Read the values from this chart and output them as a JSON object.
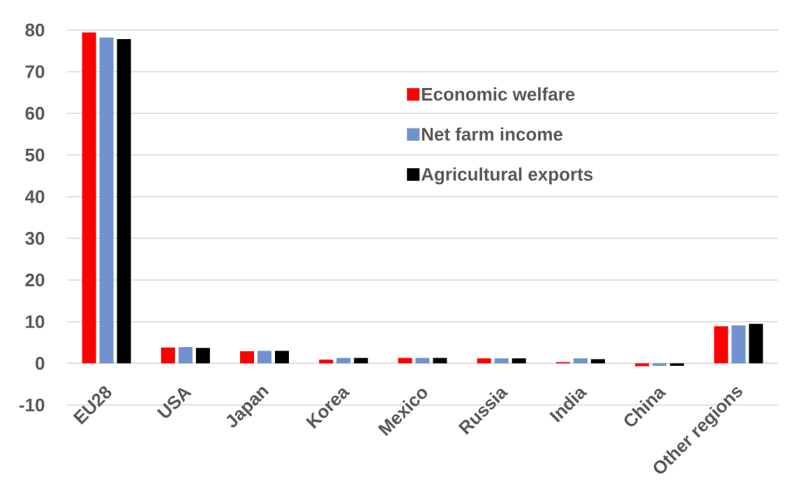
{
  "chart_data": {
    "type": "bar",
    "categories": [
      "EU28",
      "USA",
      "Japan",
      "Korea",
      "Mexico",
      "Russia",
      "India",
      "China",
      "Other regions"
    ],
    "series": [
      {
        "name": "Economic welfare",
        "color": "#ff0000",
        "values": [
          79.4,
          3.8,
          2.9,
          0.9,
          1.3,
          1.2,
          0.3,
          -0.7,
          8.9
        ]
      },
      {
        "name": "Net farm income",
        "color": "#7092cf",
        "values": [
          78.2,
          3.9,
          3.0,
          1.3,
          1.3,
          1.2,
          1.2,
          -0.6,
          9.1
        ]
      },
      {
        "name": "Agricultural exports",
        "color": "#000000",
        "values": [
          77.8,
          3.7,
          3.0,
          1.3,
          1.3,
          1.2,
          1.0,
          -0.6,
          9.5
        ]
      }
    ],
    "ylim": [
      -10,
      80
    ],
    "yticks": [
      -10,
      0,
      10,
      20,
      30,
      40,
      50,
      60,
      70,
      80
    ],
    "grid": "y",
    "legend": "top right"
  }
}
